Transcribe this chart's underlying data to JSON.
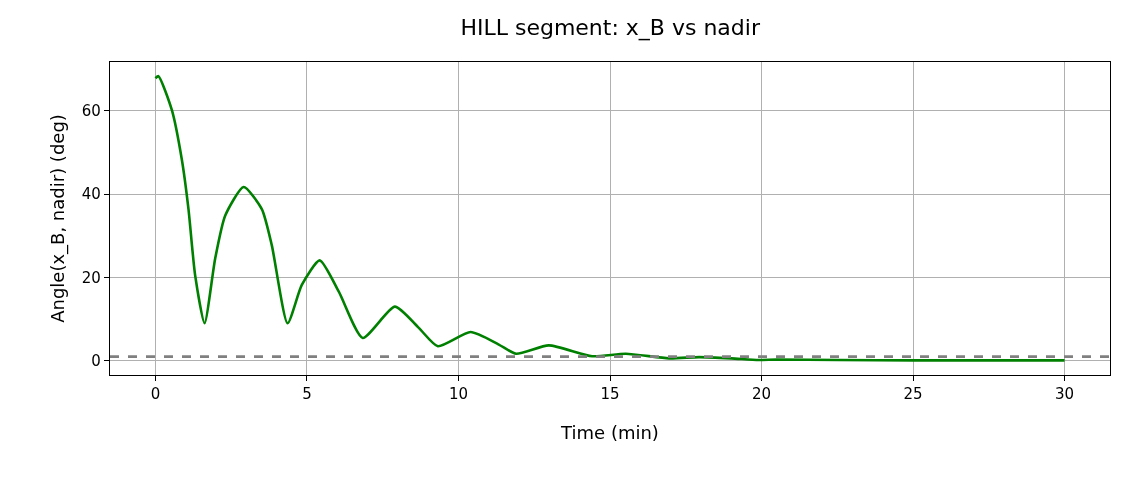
{
  "chart_data": {
    "type": "line",
    "title": "HILL segment: x_B vs nadir",
    "xlabel": "Time (min)",
    "ylabel": "Angle(x_B, nadir) (deg)",
    "series": [
      {
        "color": "#008000",
        "x": [
          0,
          0.1,
          0.54,
          0.87,
          1.09,
          1.31,
          1.62,
          1.97,
          2.3,
          2.91,
          3.51,
          3.84,
          4.36,
          4.83,
          5.42,
          6.05,
          6.84,
          7.9,
          8.69,
          9.32,
          10.4,
          11.33,
          11.9,
          12.98,
          14.41,
          15.52,
          16.95,
          17.94,
          19.0,
          19.9,
          20.5,
          22.5,
          25,
          30
        ],
        "values": [
          67.8,
          68.3,
          60.2,
          48.3,
          36.4,
          20.5,
          9.0,
          24.5,
          34.8,
          41.7,
          36.4,
          27.7,
          9.0,
          18.2,
          24.1,
          16.6,
          5.5,
          13.0,
          7.9,
          3.5,
          6.9,
          3.9,
          1.7,
          3.7,
          1.1,
          1.7,
          0.6,
          0.9,
          0.6,
          0.2,
          0.3,
          0.2,
          0.1,
          0.1
        ]
      }
    ],
    "ref_lines": [
      {
        "axis": "y",
        "value": 1,
        "color": "#808080",
        "line_style": "dashed"
      }
    ],
    "xlim": [
      -1.5,
      31.5
    ],
    "ylim": [
      -3.4,
      71.7
    ],
    "xticks": [
      0,
      5,
      10,
      15,
      20,
      25,
      30
    ],
    "yticks": [
      0,
      20,
      40,
      60
    ],
    "grid": true,
    "line_style": "solid",
    "marker": "none"
  }
}
